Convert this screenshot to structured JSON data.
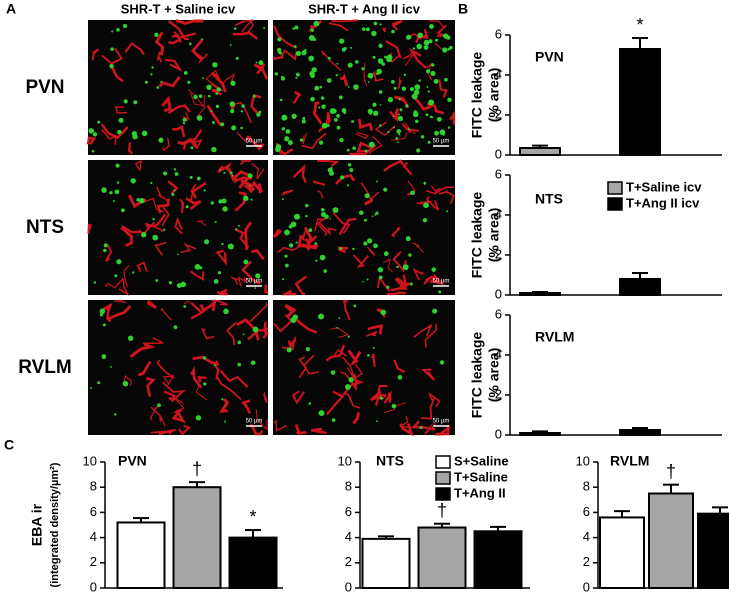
{
  "panels": {
    "A": "A",
    "B": "B",
    "C": "C",
    "columns": [
      "SHR-T + Saline icv",
      "SHR-T + Ang II icv"
    ],
    "rows": [
      "PVN",
      "NTS",
      "RVLM"
    ],
    "scale_bar": "50 µm"
  },
  "chart_data": [
    {
      "type": "bar",
      "label": "PVN",
      "ylabel": [
        "FITC leakage",
        "(% area)"
      ],
      "ylim": [
        0,
        6
      ],
      "yticks": [
        0,
        2,
        4,
        6
      ],
      "series": [
        {
          "color": "#a6a6a6",
          "values": [
            0.35
          ],
          "errors": [
            0.12
          ]
        },
        {
          "color": "#000000",
          "values": [
            5.3
          ],
          "errors": [
            0.55
          ]
        }
      ],
      "annotations": [
        {
          "text": "*",
          "series": 1
        }
      ]
    },
    {
      "type": "bar",
      "label": "NTS",
      "ylabel": [
        "FITC leakage",
        "(% area)"
      ],
      "ylim": [
        0,
        6
      ],
      "yticks": [
        0,
        2,
        4,
        6
      ],
      "legend": "upper right",
      "series": [
        {
          "name": "T+Saline icv",
          "color": "#a6a6a6",
          "values": [
            0.1
          ],
          "errors": [
            0.05
          ]
        },
        {
          "name": "T+Ang II icv",
          "color": "#000000",
          "values": [
            0.8
          ],
          "errors": [
            0.3
          ]
        }
      ]
    },
    {
      "type": "bar",
      "label": "RVLM",
      "ylabel": [
        "FITC leakage",
        "(% area)"
      ],
      "ylim": [
        0,
        6
      ],
      "yticks": [
        0,
        2,
        4,
        6
      ],
      "series": [
        {
          "color": "#a6a6a6",
          "values": [
            0.1
          ],
          "errors": [
            0.08
          ]
        },
        {
          "color": "#000000",
          "values": [
            0.25
          ],
          "errors": [
            0.1
          ]
        }
      ]
    },
    {
      "type": "bar",
      "label": "PVN",
      "ylabel": [
        "EBA ir",
        "(integrated density/µm²)"
      ],
      "ylim": [
        0,
        10
      ],
      "yticks": [
        0,
        2,
        4,
        6,
        8,
        10
      ],
      "series": [
        {
          "color": "#ffffff",
          "values": [
            5.2
          ],
          "errors": [
            0.35
          ]
        },
        {
          "color": "#a6a6a6",
          "values": [
            8.0
          ],
          "errors": [
            0.4
          ]
        },
        {
          "color": "#000000",
          "values": [
            4.0
          ],
          "errors": [
            0.6
          ]
        }
      ],
      "annotations": [
        {
          "text": "†",
          "series": 1
        },
        {
          "text": "*",
          "series": 2
        }
      ]
    },
    {
      "type": "bar",
      "label": "NTS",
      "ylim": [
        0,
        10
      ],
      "yticks": [
        0,
        2,
        4,
        6,
        8,
        10
      ],
      "legend": "upper right",
      "series": [
        {
          "name": "S+Saline",
          "color": "#ffffff",
          "values": [
            3.9
          ],
          "errors": [
            0.2
          ]
        },
        {
          "name": "T+Saline",
          "color": "#a6a6a6",
          "values": [
            4.8
          ],
          "errors": [
            0.3
          ]
        },
        {
          "name": "T+Ang II",
          "color": "#000000",
          "values": [
            4.5
          ],
          "errors": [
            0.35
          ]
        }
      ],
      "annotations": [
        {
          "text": "†",
          "series": 1
        }
      ]
    },
    {
      "type": "bar",
      "label": "RVLM",
      "ylim": [
        0,
        10
      ],
      "yticks": [
        0,
        2,
        4,
        6,
        8,
        10
      ],
      "series": [
        {
          "color": "#ffffff",
          "values": [
            5.6
          ],
          "errors": [
            0.5
          ]
        },
        {
          "color": "#a6a6a6",
          "values": [
            7.5
          ],
          "errors": [
            0.7
          ]
        },
        {
          "color": "#000000",
          "values": [
            5.9
          ],
          "errors": [
            0.5
          ]
        }
      ],
      "annotations": [
        {
          "text": "†",
          "series": 1
        }
      ]
    }
  ]
}
